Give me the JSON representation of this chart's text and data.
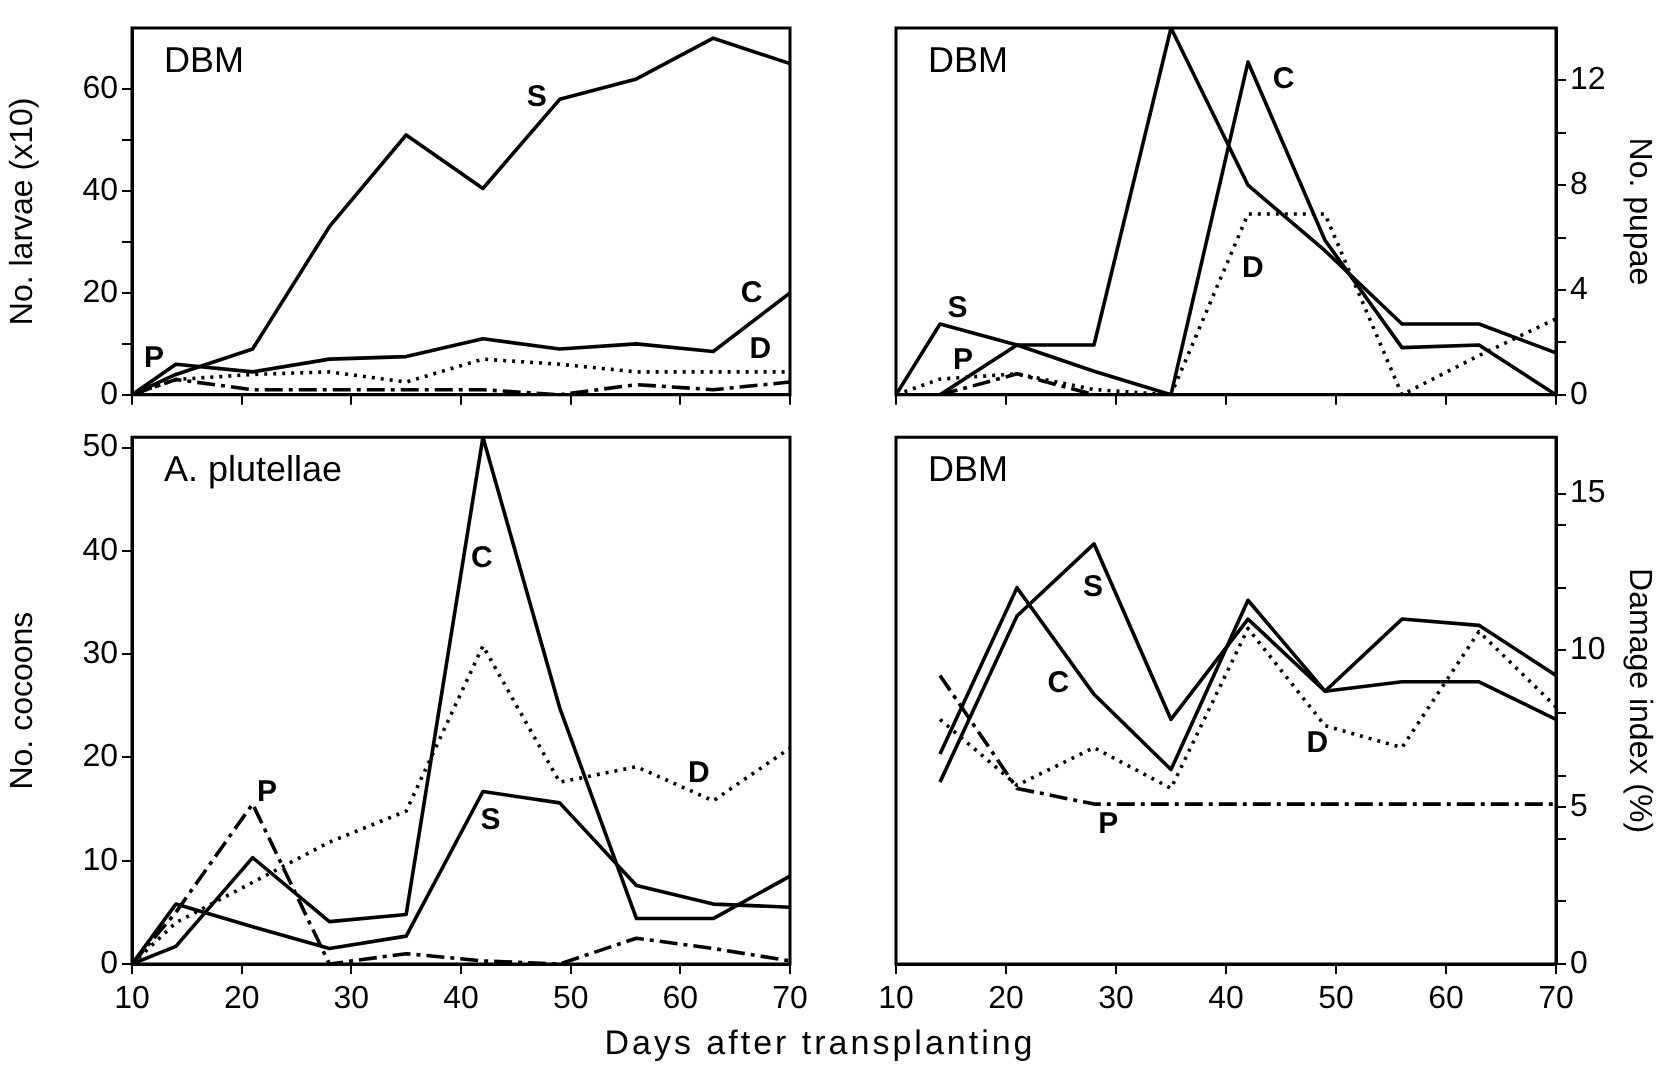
{
  "chart_data": [
    {
      "type": "line",
      "title": "DBM",
      "ylabel": "No. larvae (x10)",
      "x": [
        10,
        14,
        21,
        28,
        35,
        42,
        49,
        56,
        63,
        70
      ],
      "xlim": [
        10,
        70
      ],
      "xticks": [
        10,
        20,
        30,
        40,
        50,
        60,
        70
      ],
      "ylim": [
        0,
        72
      ],
      "yticks": [
        0,
        {
          "value": 10,
          "label": null
        },
        20,
        {
          "value": 30,
          "label": null
        },
        40,
        {
          "value": 50,
          "label": null
        },
        60
      ],
      "tick_labels": "y",
      "grid": false,
      "legend": false,
      "marker": "none",
      "series": [
        {
          "name": "S",
          "color": "#000000",
          "line_style": "solid",
          "values": [
            0,
            4,
            9,
            33,
            51,
            40.5,
            58,
            62,
            70,
            65
          ]
        },
        {
          "name": "C",
          "color": "#000000",
          "line_style": "solid",
          "values": [
            0,
            6,
            4.5,
            7,
            7.5,
            11,
            9,
            10,
            8.5,
            20
          ]
        },
        {
          "name": "D",
          "color": "#000000",
          "line_style": "dotted",
          "values": [
            0,
            3,
            4,
            4.5,
            2.5,
            7,
            6,
            4.5,
            4.5,
            4.5
          ]
        },
        {
          "name": "P",
          "color": "#000000",
          "line_style": "dashdot",
          "values": [
            0,
            3,
            1,
            1,
            1,
            1,
            0,
            2,
            1,
            2.5
          ]
        }
      ]
    },
    {
      "type": "line",
      "title": "DBM",
      "y2label": "No. pupae",
      "x": [
        10,
        14,
        21,
        28,
        35,
        42,
        49,
        56,
        63,
        70
      ],
      "xlim": [
        10,
        70
      ],
      "xticks": [
        10,
        20,
        30,
        40,
        50,
        60,
        70
      ],
      "y2lim": [
        0,
        14
      ],
      "y2ticks": [
        0,
        {
          "value": 2,
          "label": null
        },
        4,
        {
          "value": 6,
          "label": null
        },
        8,
        {
          "value": 10,
          "label": null
        },
        12
      ],
      "tick_labels": "y",
      "grid": false,
      "legend": false,
      "marker": "none",
      "series": [
        {
          "name": "S",
          "axis": "y2",
          "color": "#000000",
          "line_style": "solid",
          "values": [
            0,
            2.7,
            1.9,
            1.9,
            14,
            8,
            5.5,
            2.7,
            2.7,
            1.6
          ]
        },
        {
          "name": "C",
          "axis": "y2",
          "color": "#000000",
          "line_style": "solid",
          "x": [
            14,
            21,
            28,
            35,
            42,
            49,
            56,
            63,
            70
          ],
          "values": [
            0,
            1.9,
            0.9,
            0,
            12.7,
            5.9,
            1.8,
            1.9,
            0
          ]
        },
        {
          "name": "D",
          "axis": "y2",
          "color": "#000000",
          "line_style": "dotted",
          "values": [
            0,
            0.6,
            0.8,
            0.2,
            0,
            6.9,
            6.9,
            0,
            1.5,
            2.9
          ]
        },
        {
          "name": "P",
          "axis": "y2",
          "color": "#000000",
          "line_style": "dashdot",
          "x": [
            14,
            21,
            28
          ],
          "values": [
            0,
            0.8,
            0
          ]
        }
      ]
    },
    {
      "type": "line",
      "title": "A. plutellae",
      "ylabel": "No. cocoons",
      "xlabel": "Days after transplanting",
      "x": [
        10,
        14,
        21,
        28,
        35,
        42,
        49,
        56,
        63,
        70
      ],
      "xlim": [
        10,
        70
      ],
      "xticks": [
        10,
        20,
        30,
        40,
        50,
        60,
        70
      ],
      "ylim": [
        0,
        51
      ],
      "yticks": [
        0,
        10,
        20,
        30,
        40,
        50
      ],
      "grid": false,
      "legend": false,
      "marker": "none",
      "series": [
        {
          "name": "S",
          "color": "#000000",
          "line_style": "solid",
          "values": [
            0,
            5.8,
            3.6,
            1.5,
            2.7,
            16.7,
            15.6,
            7.6,
            5.8,
            5.5
          ]
        },
        {
          "name": "C",
          "color": "#000000",
          "line_style": "solid",
          "values": [
            0,
            1.7,
            10.3,
            4.1,
            4.8,
            51,
            24.8,
            4.4,
            4.4,
            8.5
          ]
        },
        {
          "name": "D",
          "color": "#000000",
          "line_style": "dotted",
          "values": [
            0,
            4,
            7.9,
            11.8,
            14.8,
            30.8,
            17.6,
            19.1,
            15.8,
            20.9
          ]
        },
        {
          "name": "P",
          "color": "#000000",
          "line_style": "dashdot",
          "values": [
            0,
            5,
            15.5,
            0,
            1,
            0.3,
            0,
            2.5,
            1.5,
            0.3
          ]
        }
      ]
    },
    {
      "type": "line",
      "title": "DBM",
      "y2label": "Damage index (%)",
      "x": [
        14,
        21,
        28,
        35,
        42,
        49,
        56,
        63,
        70
      ],
      "xlim": [
        10,
        70
      ],
      "xticks": [
        10,
        20,
        30,
        40,
        50,
        60,
        70
      ],
      "y2lim": [
        0,
        16.8
      ],
      "y2ticks": [
        0,
        {
          "value": 2,
          "label": null
        },
        {
          "value": 4,
          "label": null
        },
        5,
        {
          "value": 6,
          "label": null
        },
        {
          "value": 8,
          "label": null
        },
        10,
        {
          "value": 12,
          "label": null
        },
        {
          "value": 14,
          "label": null
        },
        15
      ],
      "grid": false,
      "legend": false,
      "marker": "none",
      "series": [
        {
          "name": "S",
          "axis": "y2",
          "color": "#000000",
          "line_style": "solid",
          "values": [
            5.8,
            11.1,
            13.4,
            7.8,
            11,
            8.7,
            11,
            10.8,
            9.2
          ]
        },
        {
          "name": "C",
          "axis": "y2",
          "color": "#000000",
          "line_style": "solid",
          "values": [
            6.7,
            12,
            8.6,
            6.2,
            11.6,
            8.7,
            9,
            9,
            7.8
          ]
        },
        {
          "name": "D",
          "axis": "y2",
          "color": "#000000",
          "line_style": "dotted",
          "values": [
            7.8,
            5.7,
            6.9,
            5.6,
            10.7,
            7.6,
            6.9,
            10.6,
            8.2
          ]
        },
        {
          "name": "P",
          "axis": "y2",
          "color": "#000000",
          "line_style": "dashdot",
          "values": [
            9.2,
            5.6,
            5.1,
            5.1,
            5.1,
            5.1,
            5.1,
            5.1,
            5.1
          ]
        }
      ]
    }
  ]
}
